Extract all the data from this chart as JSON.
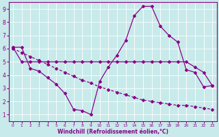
{
  "background_color": "#c8eaea",
  "grid_color": "#ffffff",
  "line_color": "#880088",
  "xlabel": "Windchill (Refroidissement éolien,°C)",
  "xlim": [
    -0.5,
    23.5
  ],
  "ylim": [
    0.5,
    9.5
  ],
  "xticks": [
    0,
    1,
    2,
    3,
    4,
    5,
    6,
    7,
    8,
    9,
    10,
    11,
    12,
    13,
    14,
    15,
    16,
    17,
    18,
    19,
    20,
    21,
    22,
    23
  ],
  "yticks": [
    1,
    2,
    3,
    4,
    5,
    6,
    7,
    8,
    9
  ],
  "curve1_x": [
    0,
    1,
    2,
    3,
    4,
    5,
    6,
    7,
    8,
    9,
    10,
    11,
    12,
    13,
    14,
    15,
    16,
    17,
    18,
    19,
    20,
    21,
    22,
    23
  ],
  "curve1_y": [
    6.1,
    6.1,
    4.5,
    4.3,
    3.8,
    3.3,
    2.6,
    1.4,
    1.3,
    1.0,
    3.5,
    4.6,
    5.5,
    6.6,
    8.5,
    9.2,
    9.2,
    7.7,
    7.0,
    6.5,
    4.4,
    4.2,
    3.1,
    3.2
  ],
  "curve2_x": [
    0,
    1,
    2,
    3,
    4,
    5,
    6,
    7,
    8,
    9,
    10,
    11,
    12,
    13,
    14,
    15,
    16,
    17,
    18,
    19,
    20,
    21,
    22,
    23
  ],
  "curve2_y": [
    6.1,
    5.0,
    5.0,
    5.0,
    5.0,
    5.0,
    5.0,
    5.0,
    5.0,
    5.0,
    5.0,
    5.0,
    5.0,
    5.0,
    5.0,
    5.0,
    5.0,
    5.0,
    5.0,
    5.0,
    5.0,
    4.6,
    4.2,
    3.2
  ],
  "curve3_x": [
    0,
    1,
    2,
    3,
    4,
    5,
    6,
    7,
    8,
    9,
    10,
    11,
    12,
    13,
    14,
    15,
    16,
    17,
    18,
    19,
    20,
    21,
    22,
    23
  ],
  "curve3_y": [
    6.0,
    5.7,
    5.4,
    5.1,
    4.8,
    4.5,
    4.2,
    3.9,
    3.6,
    3.4,
    3.1,
    2.9,
    2.7,
    2.5,
    2.3,
    2.1,
    2.0,
    1.9,
    1.8,
    1.7,
    1.7,
    1.6,
    1.5,
    1.4
  ]
}
